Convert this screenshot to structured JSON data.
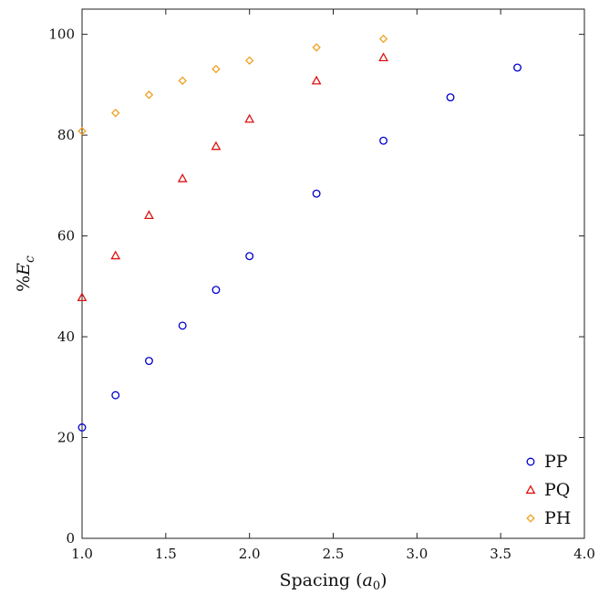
{
  "chart_data": {
    "type": "scatter",
    "title": "",
    "xlabel": "Spacing (a0)",
    "ylabel": "%Ec",
    "xlim": [
      1.0,
      4.0
    ],
    "ylim": [
      0,
      105
    ],
    "xticks": [
      "1.0",
      "1.5",
      "2.0",
      "2.5",
      "3.0",
      "3.5",
      "4.0"
    ],
    "yticks": [
      "0",
      "20",
      "40",
      "60",
      "80",
      "100"
    ],
    "grid": false,
    "legend_position": "bottom-right",
    "series": [
      {
        "name": "PP",
        "marker": "circle",
        "color": "#0000cc",
        "x": [
          1.0,
          1.2,
          1.4,
          1.6,
          1.8,
          2.0,
          2.4,
          2.8,
          3.2,
          3.6
        ],
        "y": [
          22.0,
          28.4,
          35.2,
          42.2,
          49.3,
          56.0,
          68.4,
          78.9,
          87.5,
          93.4
        ]
      },
      {
        "name": "PQ",
        "marker": "triangle",
        "color": "#dd1111",
        "x": [
          1.0,
          1.2,
          1.4,
          1.6,
          1.8,
          2.0,
          2.4,
          2.8
        ],
        "y": [
          47.8,
          56.1,
          64.1,
          71.4,
          77.8,
          83.2,
          90.8,
          95.4
        ]
      },
      {
        "name": "PH",
        "marker": "diamond",
        "color": "#f0a020",
        "x": [
          1.0,
          1.2,
          1.4,
          1.6,
          1.8,
          2.0,
          2.4,
          2.8
        ],
        "y": [
          80.8,
          84.4,
          88.0,
          90.8,
          93.1,
          94.8,
          97.4,
          99.1
        ]
      }
    ]
  }
}
